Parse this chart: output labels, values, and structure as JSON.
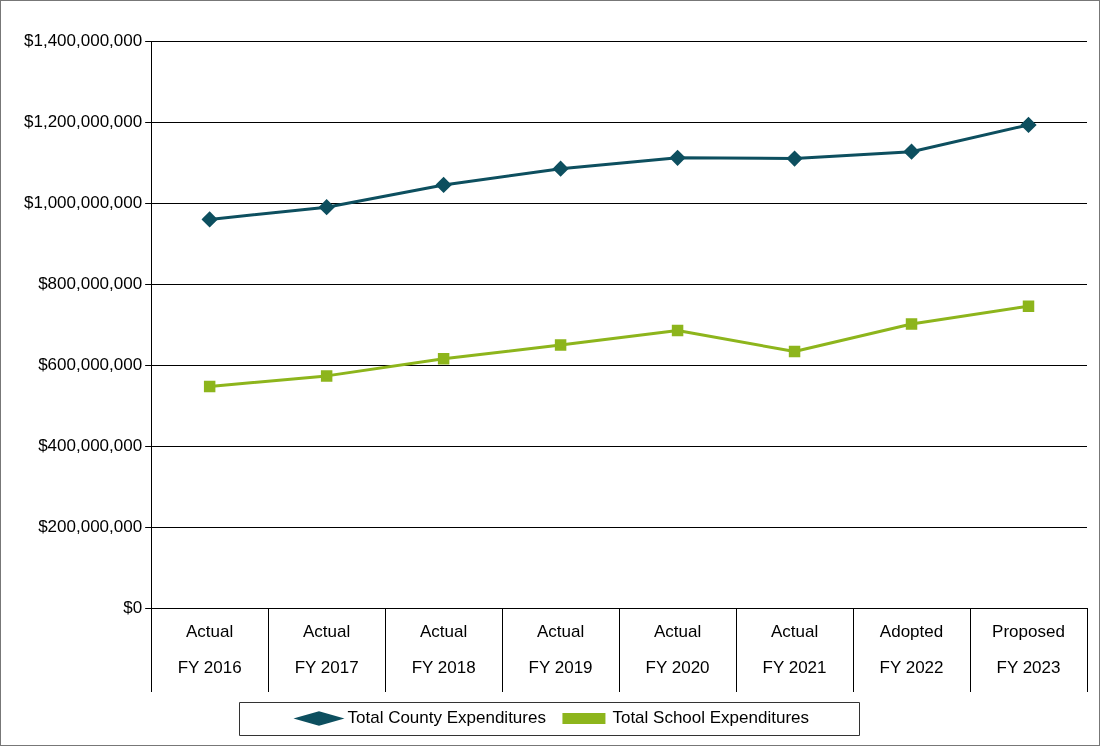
{
  "chart_data": {
    "type": "line",
    "categories": [
      "Actual\nFY 2016",
      "Actual\nFY 2017",
      "Actual\nFY 2018",
      "Actual\nFY 2019",
      "Actual\nFY 2020",
      "Actual\nFY 2021",
      "Adopted\nFY 2022",
      "Proposed\nFY 2023"
    ],
    "series": [
      {
        "name": "Total County Expenditures",
        "color": "#0d4f5f",
        "marker": "diamond",
        "values": [
          960000000,
          990000000,
          1045000000,
          1085000000,
          1112000000,
          1110000000,
          1127000000,
          1193000000
        ]
      },
      {
        "name": "Total School Expenditures",
        "color": "#8db51c",
        "marker": "square",
        "values": [
          548000000,
          574000000,
          616000000,
          650000000,
          686000000,
          634000000,
          702000000,
          746000000
        ]
      }
    ],
    "ylim": [
      0,
      1400000000
    ],
    "yticks": [
      {
        "value": 0,
        "label": "$0"
      },
      {
        "value": 200000000,
        "label": "$200,000,000"
      },
      {
        "value": 400000000,
        "label": "$400,000,000"
      },
      {
        "value": 600000000,
        "label": "$600,000,000"
      },
      {
        "value": 800000000,
        "label": "$800,000,000"
      },
      {
        "value": 1000000000,
        "label": "$1,000,000,000"
      },
      {
        "value": 1200000000,
        "label": "$1,200,000,000"
      },
      {
        "value": 1400000000,
        "label": "$1,400,000,000"
      }
    ],
    "grid": "y",
    "legend": "bottom",
    "line_style": "solid"
  }
}
